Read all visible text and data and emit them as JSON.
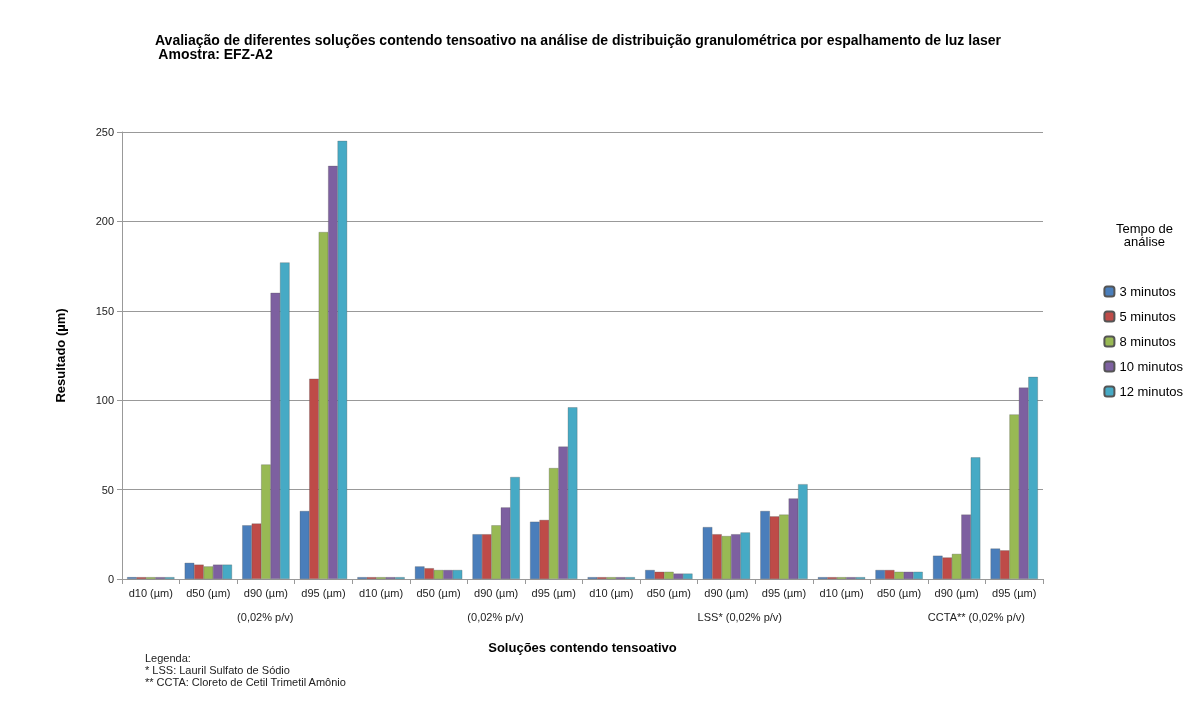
{
  "chart_data": {
    "type": "bar",
    "title": "Avaliação de diferentes soluções contendo tensoativo na análise de distribuição granulométrica por espalhamento de luz laser  Amostra: EFZ-A2",
    "xlabel": "Soluções contendo tensoativo",
    "ylabel": "Resultado (µm)",
    "legend_title": "Tempo de análise",
    "categories": [
      "d10 (µm)",
      "d50 (µm)",
      "d90 (µm)",
      "d95 (µm)",
      "d10 (µm)",
      "d50 (µm)",
      "d90 (µm)",
      "d95 (µm)",
      "d10 (µm)",
      "d50 (µm)",
      "d90 (µm)",
      "d95 (µm)",
      "d10 (µm)",
      "d50 (µm)",
      "d90 (µm)",
      "d95 (µm)"
    ],
    "series": [
      {
        "name": "3 minutos",
        "color": "#4a7ebb",
        "values": [
          1,
          9,
          30,
          38,
          1,
          7,
          25,
          32,
          1,
          5,
          29,
          38,
          1,
          5,
          13,
          17
        ]
      },
      {
        "name": "5 minutos",
        "color": "#be4b48",
        "values": [
          1,
          8,
          31,
          112,
          1,
          6,
          25,
          33,
          1,
          4,
          25,
          35,
          1,
          5,
          12,
          16
        ]
      },
      {
        "name": "8 minutos",
        "color": "#98b954",
        "values": [
          1,
          7,
          64,
          194,
          1,
          5,
          30,
          62,
          1,
          4,
          24,
          36,
          1,
          4,
          14,
          92
        ]
      },
      {
        "name": "10 minutos",
        "color": "#7d60a0",
        "values": [
          1,
          8,
          160,
          231,
          1,
          5,
          40,
          74,
          1,
          3,
          25,
          45,
          1,
          4,
          36,
          107
        ]
      },
      {
        "name": "12 minutos",
        "color": "#46aac5",
        "values": [
          1,
          8,
          177,
          245,
          1,
          5,
          57,
          96,
          1,
          3,
          26,
          53,
          1,
          4,
          68,
          113
        ]
      }
    ],
    "ylim": [
      0,
      250
    ],
    "yticks": [
      0,
      50,
      100,
      150,
      200,
      250
    ],
    "grid": "y",
    "legend": "right",
    "annotations": [
      "(0,02% p/v)",
      "(0,02% p/v)",
      "LSS* (0,02% p/v)",
      "CCTA** (0,02% p/v)",
      "Legenda:\n* LSS: Lauril Sulfato de Sódio\n** CCTA: Cloreto de Cetil Trimetil Amônio"
    ]
  }
}
